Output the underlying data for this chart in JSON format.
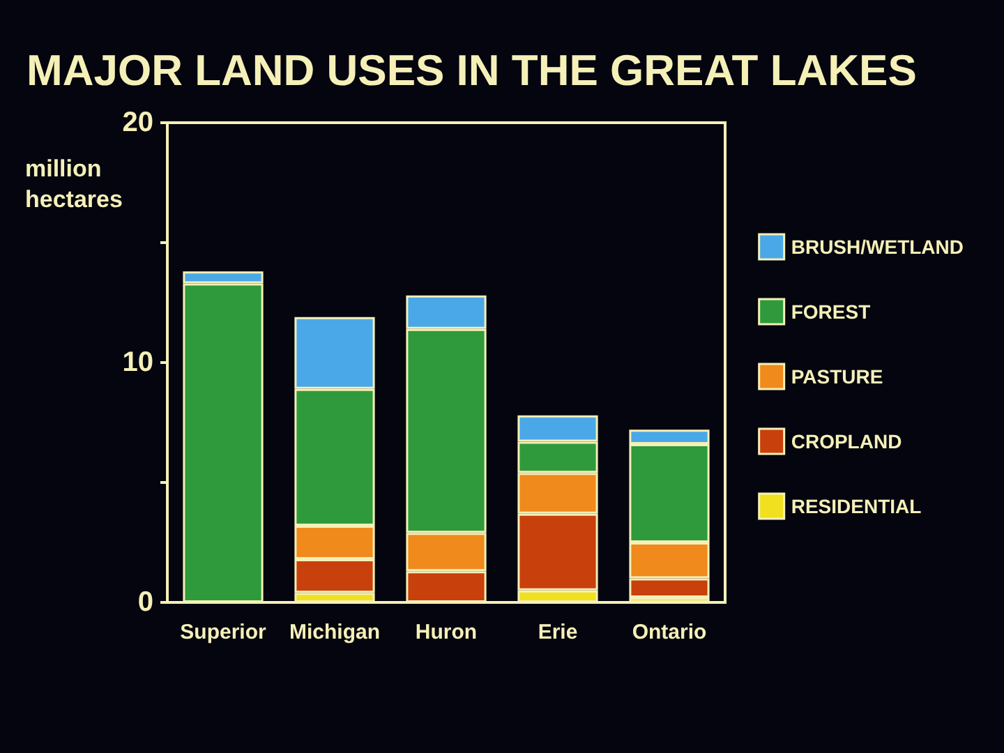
{
  "chart_data": {
    "type": "bar",
    "stacked": true,
    "title": "MAJOR LAND USES IN THE GREAT LAKES",
    "ylabel": "million hectares",
    "categories": [
      "Superior",
      "Michigan",
      "Huron",
      "Erie",
      "Ontario"
    ],
    "series": [
      {
        "name": "RESIDENTIAL",
        "color": "#f0e020",
        "values": [
          0,
          0.4,
          0,
          0.5,
          0.2
        ]
      },
      {
        "name": "CROPLAND",
        "color": "#c8400c",
        "values": [
          0,
          1.4,
          1.3,
          3.2,
          0.8
        ]
      },
      {
        "name": "PASTURE",
        "color": "#f08a1c",
        "values": [
          0,
          1.4,
          1.6,
          1.7,
          1.5
        ]
      },
      {
        "name": "FOREST",
        "color": "#2e9a3c",
        "values": [
          13.3,
          5.7,
          8.5,
          1.3,
          4.1
        ]
      },
      {
        "name": "BRUSH/WETLAND",
        "color": "#4aa8e8",
        "values": [
          0.5,
          3.0,
          1.4,
          1.1,
          0.6
        ]
      }
    ],
    "ylim": [
      0,
      20
    ],
    "yticks": [
      0,
      {
        "value": 5,
        "label": null
      },
      10,
      {
        "value": 15,
        "label": null
      },
      20
    ],
    "grid": false,
    "legend": "right"
  }
}
